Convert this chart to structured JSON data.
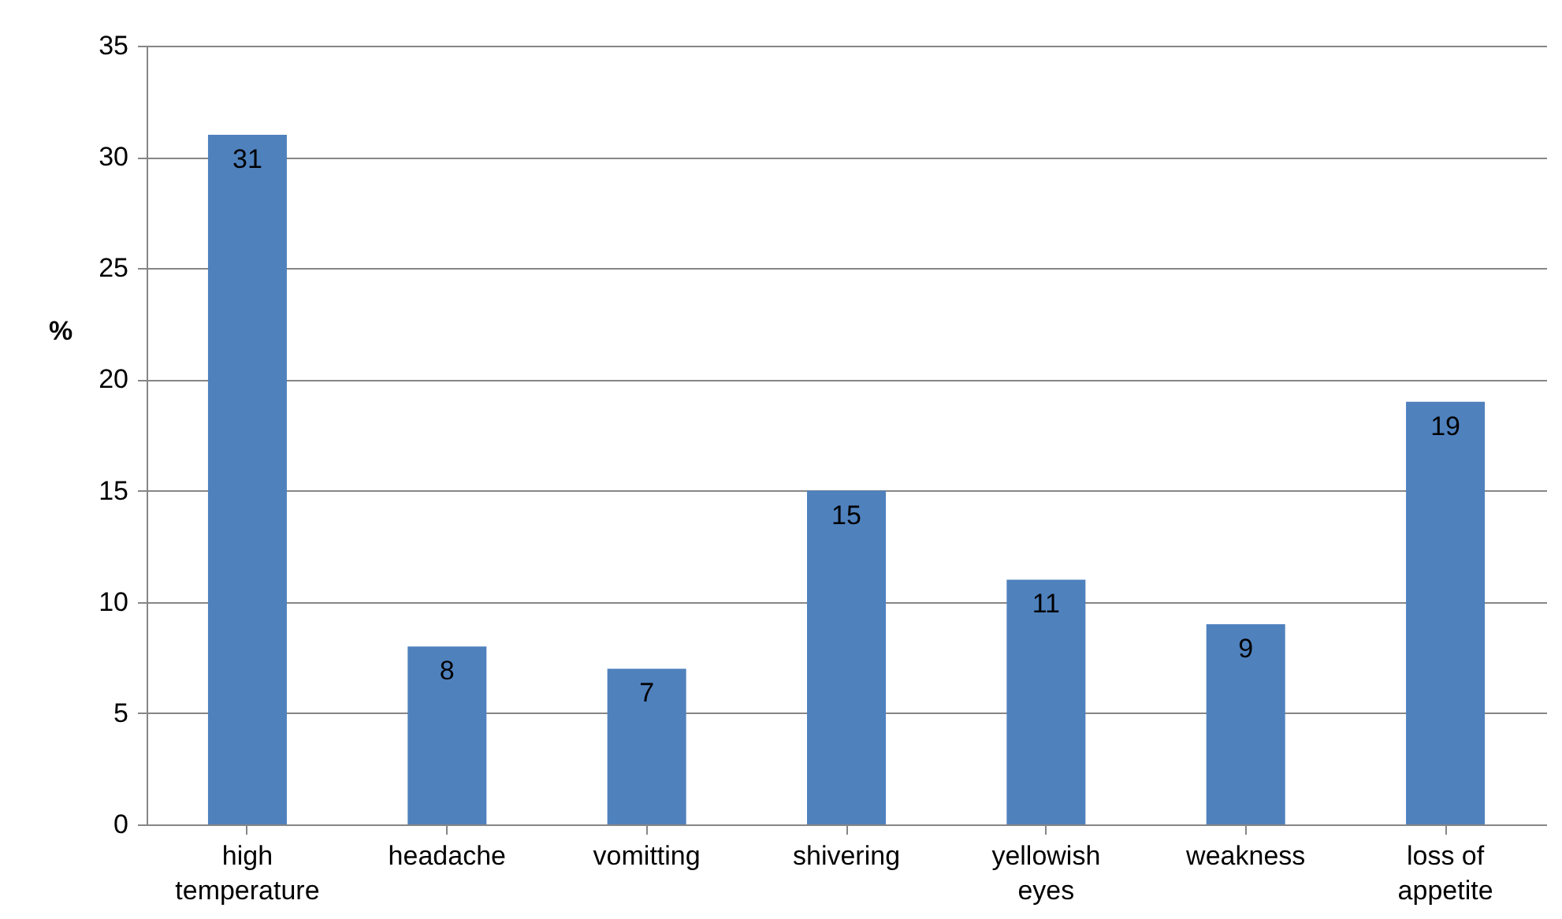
{
  "chart_data": {
    "type": "bar",
    "ylabel": "%",
    "categories": [
      "high temperature",
      "headache",
      "vomitting",
      "shivering",
      "yellowish eyes",
      "weakness",
      "loss of appetite"
    ],
    "values": [
      31,
      8,
      7,
      15,
      11,
      9,
      19
    ],
    "color": "#4f81bd",
    "ylim": [
      0,
      35
    ],
    "yticks": [
      0,
      5,
      10,
      15,
      20,
      25,
      30,
      35
    ],
    "grid": "y",
    "data_labels": true
  }
}
